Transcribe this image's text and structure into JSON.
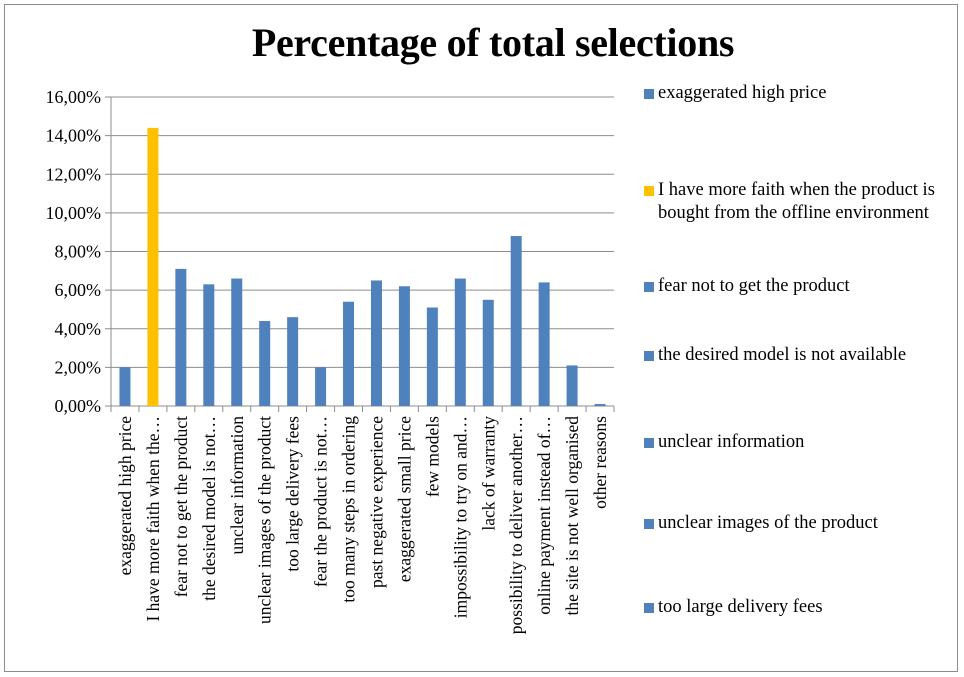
{
  "chart_data": {
    "type": "bar",
    "title": "Percentage of total selections",
    "xlabel": "",
    "ylabel": "",
    "ylim": [
      0,
      16
    ],
    "y_ticks": [
      "0,00%",
      "2,00%",
      "4,00%",
      "6,00%",
      "8,00%",
      "10,00%",
      "12,00%",
      "14,00%",
      "16,00%"
    ],
    "y_unit": "%",
    "grid": true,
    "legend_position": "right",
    "categories": [
      "exaggerated high price",
      "I have more faith when the…",
      "fear not to get the product",
      "the desired model is not…",
      "unclear information",
      "unclear images of the product",
      "too large delivery fees",
      "fear the product is not…",
      "too many steps in ordering",
      "past negative experience",
      "exaggerated small price",
      "few models",
      "impossibility to try on and…",
      "lack of warranty",
      "possibility to deliver another…",
      "online payment instead of…",
      "the site is not well organised",
      "other reasons"
    ],
    "values": [
      2.0,
      14.4,
      7.1,
      6.3,
      6.6,
      4.4,
      4.6,
      2.0,
      5.4,
      6.5,
      6.2,
      5.1,
      6.6,
      5.5,
      8.8,
      6.4,
      2.1,
      0.1
    ],
    "bar_colors": [
      "#4f81bd",
      "#ffc000",
      "#4f81bd",
      "#4f81bd",
      "#4f81bd",
      "#4f81bd",
      "#4f81bd",
      "#4f81bd",
      "#4f81bd",
      "#4f81bd",
      "#4f81bd",
      "#4f81bd",
      "#4f81bd",
      "#4f81bd",
      "#4f81bd",
      "#4f81bd",
      "#4f81bd",
      "#4f81bd"
    ],
    "legend": [
      {
        "label": "exaggerated high price",
        "color": "#4f81bd"
      },
      {
        "label": "I have more faith when the product is bought from the offline environment",
        "color": "#ffc000"
      },
      {
        "label": "fear not to get the product",
        "color": "#4f81bd"
      },
      {
        "label": "the desired model is not available",
        "color": "#4f81bd"
      },
      {
        "label": "unclear information",
        "color": "#4f81bd"
      },
      {
        "label": "unclear images of the product",
        "color": "#4f81bd"
      },
      {
        "label": "too large delivery fees",
        "color": "#4f81bd"
      }
    ]
  }
}
